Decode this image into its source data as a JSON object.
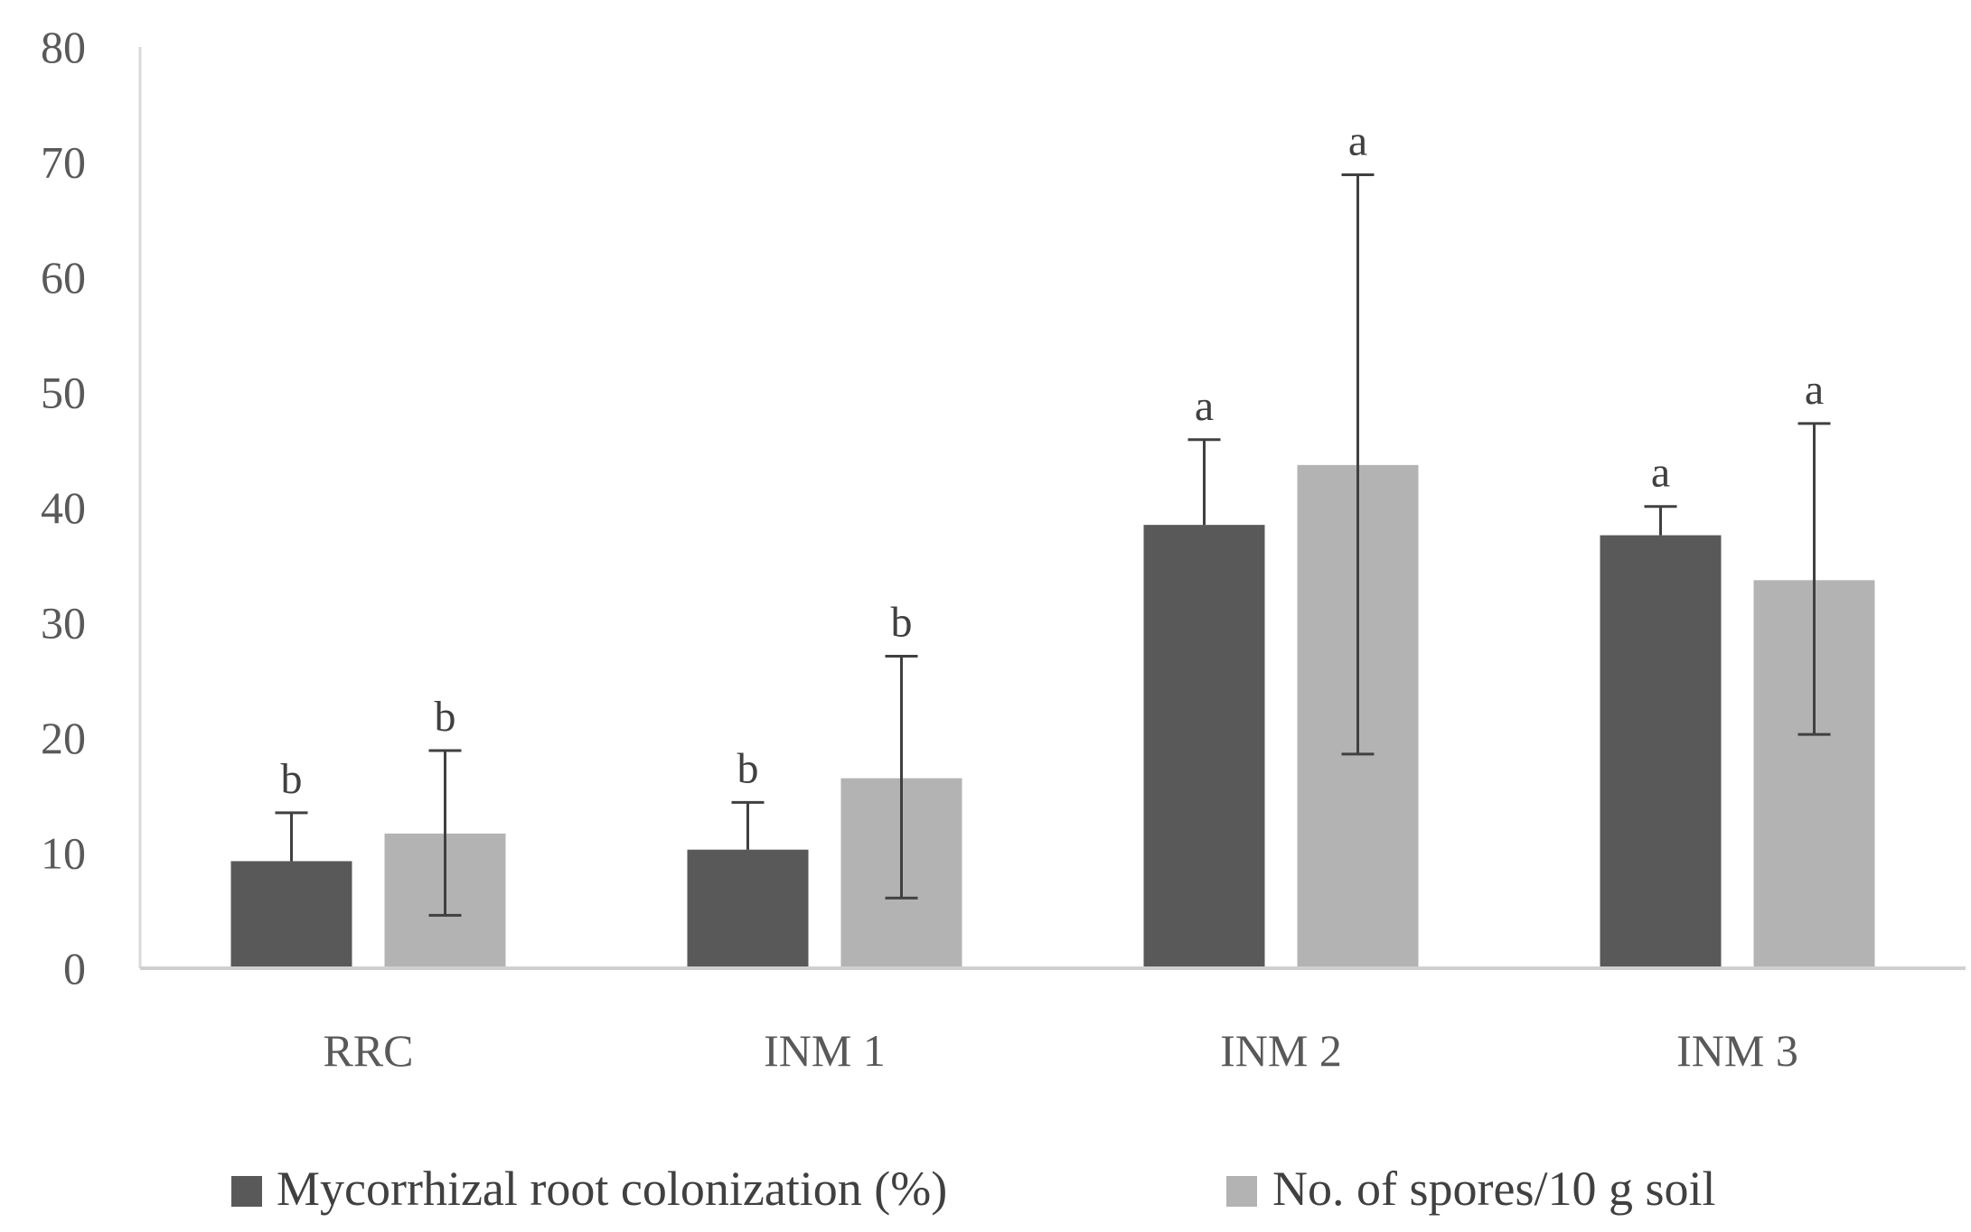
{
  "chart_data": {
    "type": "bar",
    "title": "",
    "xlabel": "",
    "ylabel": "",
    "ylim": [
      0,
      80
    ],
    "yticks": [
      0,
      10,
      20,
      30,
      40,
      50,
      60,
      70,
      80
    ],
    "grid": false,
    "legend_position": "bottom",
    "categories": [
      "RRC",
      "INM 1",
      "INM 2",
      "INM 3"
    ],
    "series": [
      {
        "name": "Mycorrhizal root colonization (%)",
        "color": "#595959",
        "values": [
          9.3,
          10.3,
          38.5,
          37.6
        ],
        "error_upper": [
          13.5,
          14.4,
          45.9,
          40.1
        ],
        "error_lower": [
          9.3,
          10.3,
          38.5,
          37.6
        ],
        "significance": [
          "b",
          "b",
          "a",
          "a"
        ]
      },
      {
        "name": "No. of spores/10 g soil",
        "color": "#b3b3b3",
        "values": [
          11.7,
          16.5,
          43.7,
          33.7
        ],
        "error_upper": [
          18.9,
          27.1,
          68.9,
          47.3
        ],
        "error_lower": [
          4.6,
          6.1,
          18.6,
          20.3
        ],
        "significance": [
          "b",
          "b",
          "a",
          "a"
        ]
      }
    ]
  }
}
